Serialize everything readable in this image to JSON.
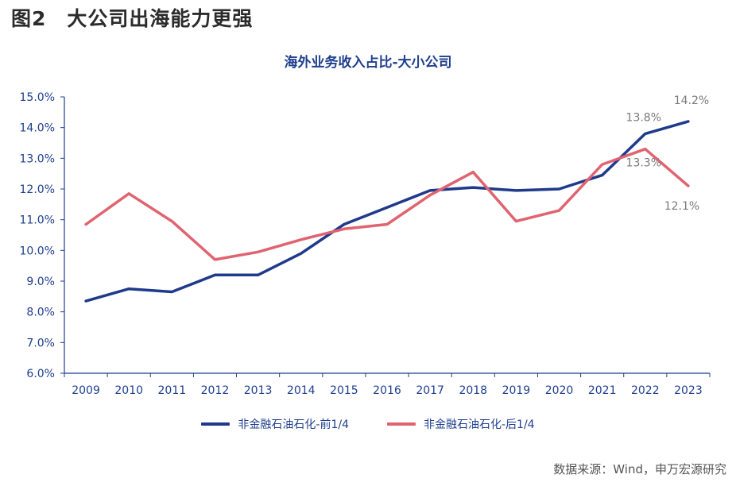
{
  "figure": {
    "number": "图2",
    "title": "大公司出海能力更强",
    "source": "数据来源：Wind，申万宏源研究"
  },
  "chart_data": {
    "type": "line",
    "title": "海外业务收入占比-大小公司",
    "xlabel": "",
    "ylabel": "",
    "x": [
      "2009",
      "2010",
      "2011",
      "2012",
      "2013",
      "2014",
      "2015",
      "2016",
      "2017",
      "2018",
      "2019",
      "2020",
      "2021",
      "2022",
      "2023"
    ],
    "ylim": [
      6.0,
      15.0
    ],
    "yticks": [
      "6.0%",
      "7.0%",
      "8.0%",
      "9.0%",
      "10.0%",
      "11.0%",
      "12.0%",
      "13.0%",
      "14.0%",
      "15.0%"
    ],
    "grid": false,
    "legend_position": "bottom",
    "series": [
      {
        "name": "非金融石油石化-前1/4",
        "color": "#1f3a8c",
        "values": [
          8.35,
          8.75,
          8.65,
          9.2,
          9.2,
          9.9,
          10.85,
          11.4,
          11.95,
          12.05,
          11.95,
          12.0,
          12.45,
          13.8,
          14.2
        ]
      },
      {
        "name": "非金融石油石化-后1/4",
        "color": "#e06470",
        "values": [
          10.85,
          11.85,
          10.95,
          9.7,
          9.95,
          10.35,
          10.7,
          10.85,
          11.8,
          12.55,
          10.95,
          11.3,
          12.8,
          13.3,
          12.1
        ]
      }
    ],
    "annotations": [
      {
        "text": "13.8%",
        "series": 0,
        "x": "2022"
      },
      {
        "text": "14.2%",
        "series": 0,
        "x": "2023"
      },
      {
        "text": "13.3%",
        "series": 1,
        "x": "2022"
      },
      {
        "text": "12.1%",
        "series": 1,
        "x": "2023"
      }
    ]
  }
}
